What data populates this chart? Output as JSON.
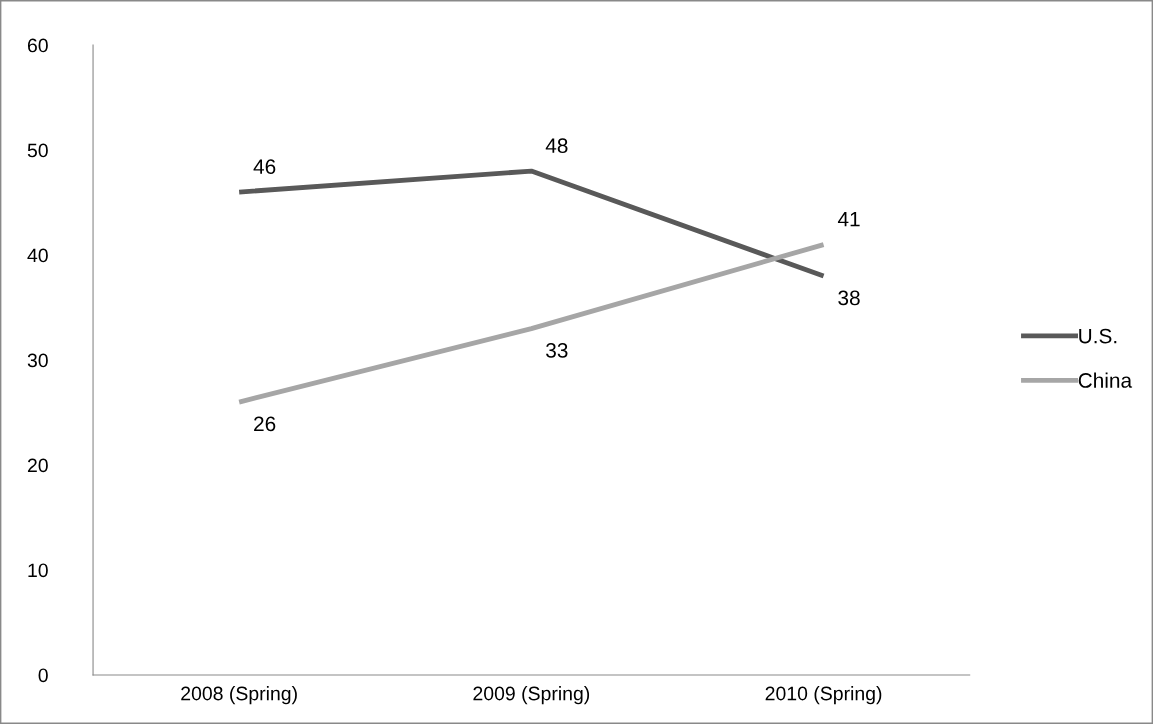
{
  "chart_data": {
    "type": "line",
    "categories": [
      "2008 (Spring)",
      "2009 (Spring)",
      "2010 (Spring)"
    ],
    "series": [
      {
        "name": "U.S.",
        "color": "#595959",
        "values": [
          46,
          48,
          38
        ]
      },
      {
        "name": "China",
        "color": "#a6a6a6",
        "values": [
          26,
          33,
          41
        ]
      }
    ],
    "ylim": [
      0,
      60
    ],
    "yticks": [
      0,
      10,
      20,
      30,
      40,
      50,
      60
    ],
    "grid": false,
    "legend": "right",
    "data_labels": true,
    "marker": "none",
    "line_style": "solid"
  }
}
